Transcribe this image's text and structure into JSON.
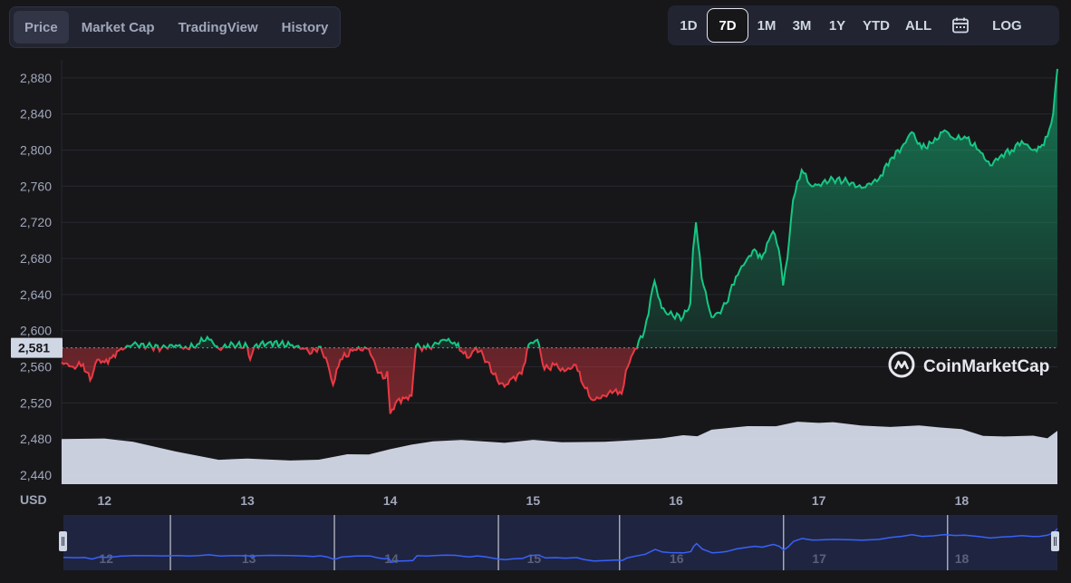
{
  "tabs": [
    {
      "label": "Price",
      "active": true
    },
    {
      "label": "Market Cap",
      "active": false
    },
    {
      "label": "TradingView",
      "active": false
    },
    {
      "label": "History",
      "active": false
    }
  ],
  "ranges": [
    {
      "label": "1D",
      "active": false
    },
    {
      "label": "7D",
      "active": true
    },
    {
      "label": "1M",
      "active": false
    },
    {
      "label": "3M",
      "active": false
    },
    {
      "label": "1Y",
      "active": false
    },
    {
      "label": "YTD",
      "active": false
    },
    {
      "label": "ALL",
      "active": false
    }
  ],
  "calendar_icon": "calendar-icon",
  "log_label": "LOG",
  "watermark": {
    "text": "CoinMarketCap",
    "icon": "coinmarketcap-logo-icon"
  },
  "colors": {
    "up": "#16c784",
    "down": "#ea3943",
    "volume": "#cfd6e4",
    "navigator_line": "#3861fb",
    "background": "#17171a"
  },
  "chart_data": {
    "type": "line",
    "ylabel": "USD",
    "ylim": [
      2430,
      2900
    ],
    "yticks": [
      "2,440",
      "2,480",
      "2,520",
      "2,560",
      "2,600",
      "2,640",
      "2,680",
      "2,720",
      "2,760",
      "2,800",
      "2,840",
      "2,880"
    ],
    "ytick_values": [
      2440,
      2480,
      2520,
      2560,
      2600,
      2640,
      2680,
      2720,
      2760,
      2800,
      2840,
      2880
    ],
    "xlim": [
      11.7,
      18.67
    ],
    "xticks": [
      "12",
      "13",
      "14",
      "15",
      "16",
      "17",
      "18"
    ],
    "xtick_values": [
      12,
      13,
      14,
      15,
      16,
      17,
      18
    ],
    "baseline": 2581,
    "baseline_label": "2,581",
    "grid": true,
    "series": [
      {
        "x": [
          11.7,
          11.78,
          11.85,
          11.9,
          11.95,
          12.0,
          12.05,
          12.1,
          12.2,
          12.3,
          12.4,
          12.5,
          12.58,
          12.65,
          12.72,
          12.8,
          12.9,
          13.0,
          13.02,
          13.05,
          13.15,
          13.3,
          13.4,
          13.45,
          13.5,
          13.55,
          13.6,
          13.65,
          13.75,
          13.85,
          13.9,
          13.95,
          13.98,
          14.0,
          14.05,
          14.1,
          14.15,
          14.18,
          14.25,
          14.3,
          14.38,
          14.45,
          14.5,
          14.55,
          14.6,
          14.65,
          14.75,
          14.8,
          14.85,
          14.92,
          14.97,
          15.03,
          15.08,
          15.15,
          15.22,
          15.3,
          15.35,
          15.42,
          15.5,
          15.58,
          15.62,
          15.65,
          15.7,
          15.78,
          15.85,
          15.9,
          15.95,
          16.05,
          16.1,
          16.12,
          16.14,
          16.18,
          16.25,
          16.3,
          16.35,
          16.42,
          16.5,
          16.55,
          16.6,
          16.65,
          16.68,
          16.72,
          16.75,
          16.78,
          16.82,
          16.88,
          16.95,
          17.0,
          17.1,
          17.2,
          17.3,
          17.42,
          17.5,
          17.58,
          17.65,
          17.72,
          17.8,
          17.88,
          17.95,
          18.02,
          18.12,
          18.2,
          18.28,
          18.35,
          18.42,
          18.5,
          18.55,
          18.6,
          18.64,
          18.67
        ],
        "y": [
          2565,
          2560,
          2563,
          2545,
          2568,
          2565,
          2570,
          2578,
          2585,
          2583,
          2581,
          2584,
          2580,
          2585,
          2593,
          2580,
          2585,
          2582,
          2568,
          2583,
          2587,
          2584,
          2580,
          2575,
          2582,
          2570,
          2540,
          2568,
          2579,
          2580,
          2560,
          2547,
          2555,
          2508,
          2523,
          2525,
          2528,
          2583,
          2580,
          2584,
          2590,
          2587,
          2577,
          2570,
          2581,
          2573,
          2545,
          2538,
          2547,
          2552,
          2585,
          2590,
          2557,
          2562,
          2555,
          2562,
          2540,
          2523,
          2528,
          2535,
          2530,
          2556,
          2575,
          2600,
          2655,
          2625,
          2618,
          2615,
          2630,
          2690,
          2720,
          2658,
          2615,
          2620,
          2630,
          2660,
          2680,
          2690,
          2680,
          2700,
          2710,
          2690,
          2650,
          2680,
          2745,
          2778,
          2760,
          2762,
          2768,
          2765,
          2758,
          2768,
          2790,
          2803,
          2820,
          2802,
          2808,
          2822,
          2812,
          2815,
          2800,
          2783,
          2795,
          2800,
          2810,
          2800,
          2803,
          2815,
          2840,
          2890
        ]
      }
    ],
    "volume_series": {
      "x": [
        11.7,
        12.0,
        12.2,
        12.5,
        12.8,
        13.0,
        13.3,
        13.5,
        13.7,
        13.85,
        14.0,
        14.15,
        14.3,
        14.5,
        14.8,
        15.0,
        15.2,
        15.5,
        15.7,
        15.9,
        16.05,
        16.15,
        16.25,
        16.5,
        16.7,
        16.85,
        17.0,
        17.1,
        17.3,
        17.5,
        17.7,
        17.85,
        18.0,
        18.15,
        18.3,
        18.5,
        18.6,
        18.67
      ],
      "y": [
        2480,
        2480,
        2478,
        2465,
        2458,
        2458,
        2456,
        2458,
        2462,
        2464,
        2468,
        2474,
        2478,
        2478,
        2477,
        2478,
        2477,
        2477,
        2478,
        2482,
        2483,
        2484,
        2490,
        2494,
        2495,
        2498,
        2499,
        2498,
        2495,
        2494,
        2494,
        2494,
        2490,
        2484,
        2483,
        2483,
        2482,
        2488
      ]
    }
  }
}
